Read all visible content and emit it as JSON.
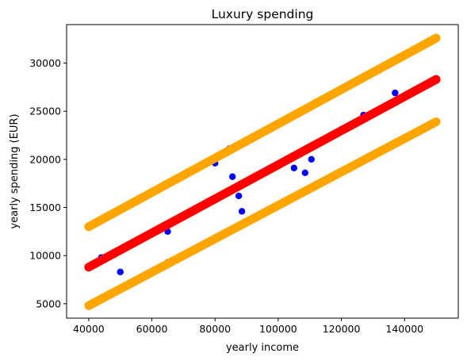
{
  "chart_data": {
    "type": "scatter",
    "title": "Luxury spending",
    "xlabel": "yearly income",
    "ylabel": "yearly spending (EUR)",
    "xlim": [
      33000,
      157000
    ],
    "ylim": [
      3500,
      34000
    ],
    "xticks": [
      {
        "value": 40000,
        "label": "40000"
      },
      {
        "value": 60000,
        "label": "60000"
      },
      {
        "value": 80000,
        "label": "80000"
      },
      {
        "value": 100000,
        "label": "100000"
      },
      {
        "value": 120000,
        "label": "120000"
      },
      {
        "value": 140000,
        "label": "140000"
      }
    ],
    "yticks": [
      {
        "value": 5000,
        "label": "5000"
      },
      {
        "value": 10000,
        "label": "10000"
      },
      {
        "value": 15000,
        "label": "15000"
      },
      {
        "value": 20000,
        "label": "20000"
      },
      {
        "value": 25000,
        "label": "25000"
      },
      {
        "value": 30000,
        "label": "30000"
      }
    ],
    "grid": false,
    "points": {
      "color": "#0000ff",
      "x": [
        44000,
        50000,
        64000,
        65000,
        65000,
        80000,
        84500,
        85500,
        87500,
        88500,
        105000,
        108500,
        110500,
        127000,
        137000
      ],
      "y": [
        9800,
        8300,
        17400,
        12500,
        9300,
        19600,
        21100,
        18200,
        16200,
        14600,
        19100,
        18600,
        20000,
        24600,
        26900
      ]
    },
    "lines": [
      {
        "role": "fit",
        "color": "#ff0000",
        "x": [
          40000,
          150000
        ],
        "y": [
          8800,
          28300
        ]
      },
      {
        "role": "upper-band",
        "color": "#ffa500",
        "x": [
          40000,
          150000
        ],
        "y": [
          13000,
          32600
        ]
      },
      {
        "role": "lower-band",
        "color": "#ffa500",
        "x": [
          40000,
          150000
        ],
        "y": [
          4800,
          23900
        ]
      }
    ]
  }
}
